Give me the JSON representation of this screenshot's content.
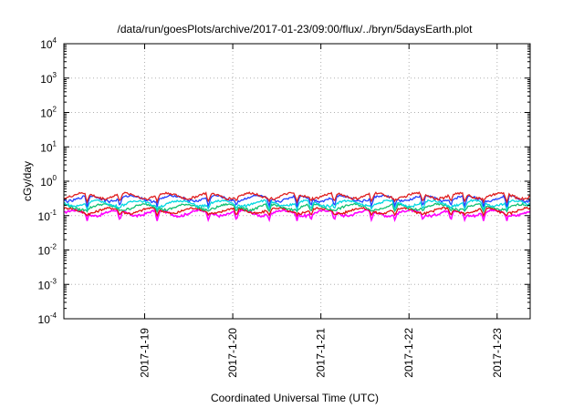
{
  "chart_data": {
    "type": "line",
    "title": "/data/run/goesPlots/archive/2017-01-23/09:00/flux/../bryn/5daysEarth.plot",
    "xlabel": "Coordinated Universal Time (UTC)",
    "ylabel": "cGy/day",
    "yscale": "log",
    "ylim_exponent": [
      -4,
      4
    ],
    "y_tick_labels": [
      {
        "base": "10",
        "exp": "-4"
      },
      {
        "base": "10",
        "exp": "-3"
      },
      {
        "base": "10",
        "exp": "-2"
      },
      {
        "base": "10",
        "exp": "-1"
      },
      {
        "base": "10",
        "exp": "0"
      },
      {
        "base": "10",
        "exp": "1"
      },
      {
        "base": "10",
        "exp": "2"
      },
      {
        "base": "10",
        "exp": "3"
      },
      {
        "base": "10",
        "exp": "4"
      }
    ],
    "xlim": [
      "2017-01-18 02:00",
      "2017-01-23 09:00"
    ],
    "x_tick_labels": [
      "2017-1-19",
      "2017-1-20",
      "2017-1-21",
      "2017-1-22",
      "2017-1-23"
    ],
    "x_ticks": [
      "2017-01-19 00:00",
      "2017-01-20 00:00",
      "2017-01-21 00:00",
      "2017-01-22 00:00",
      "2017-01-23 00:00"
    ],
    "grid": true,
    "legend": "none",
    "series": [
      {
        "color": "#ff00ff",
        "base_value": 0.12,
        "dip_value": 0.07
      },
      {
        "color": "#e01010",
        "base_value": 0.14,
        "dip_value": 0.1
      },
      {
        "color": "#10c070",
        "base_value": 0.18,
        "dip_value": 0.13
      },
      {
        "color": "#00d8e0",
        "base_value": 0.23,
        "dip_value": 0.15
      },
      {
        "color": "#2040ff",
        "base_value": 0.32,
        "dip_value": 0.18
      },
      {
        "color": "#e02020",
        "base_value": 0.38,
        "dip_value": 0.25
      }
    ]
  }
}
